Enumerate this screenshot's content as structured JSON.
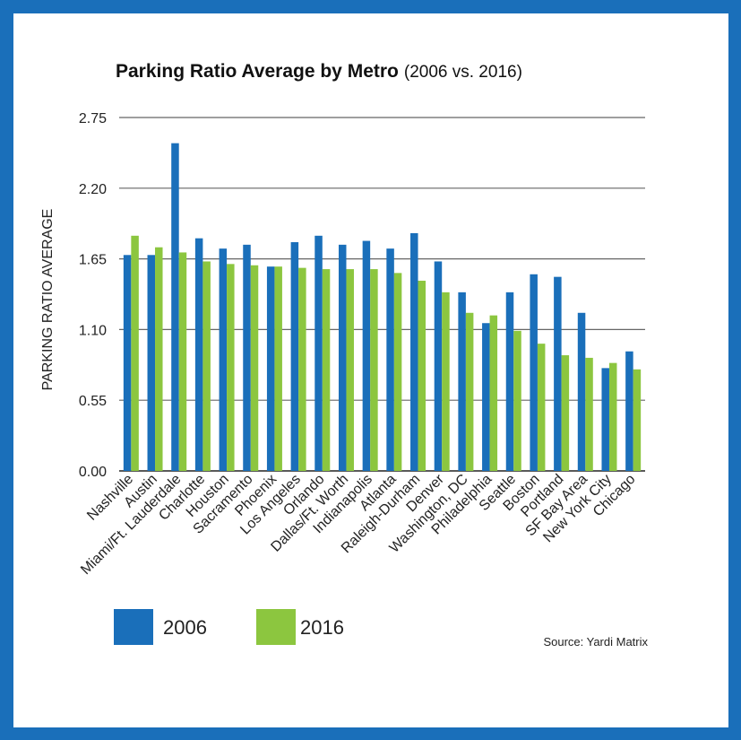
{
  "chart_data": {
    "type": "bar",
    "title": "Parking Ratio Average by Metro",
    "subtitle": "(2006 vs. 2016)",
    "xlabel": "",
    "ylabel": "PARKING RATIO AVERAGE",
    "ylim": [
      0,
      2.75
    ],
    "yticks": [
      "0.00",
      "0.55",
      "1.10",
      "1.65",
      "2.20",
      "2.75"
    ],
    "grid": true,
    "legend": "bottom-left",
    "source": "Source: Yardi Matrix",
    "categories": [
      "Nashville",
      "Austin",
      "Miami/Ft. Lauderdale",
      "Charlotte",
      "Houston",
      "Sacramento",
      "Phoenix",
      "Los Angeles",
      "Orlando",
      "Dallas/Ft. Worth",
      "Indianapolis",
      "Atlanta",
      "Raleigh-Durham",
      "Denver",
      "Washington, DC",
      "Philadelphia",
      "Seattle",
      "Boston",
      "Portland",
      "SF Bay Area",
      "New York City",
      "Chicago"
    ],
    "series": [
      {
        "name": "2006",
        "color": "#1a6fba",
        "values": [
          1.68,
          1.68,
          2.55,
          1.81,
          1.73,
          1.76,
          1.59,
          1.78,
          1.83,
          1.76,
          1.79,
          1.73,
          1.85,
          1.63,
          1.39,
          1.15,
          1.39,
          1.53,
          1.51,
          1.23,
          0.8,
          0.93
        ]
      },
      {
        "name": "2016",
        "color": "#8cc63f",
        "values": [
          1.83,
          1.74,
          1.7,
          1.63,
          1.61,
          1.6,
          1.59,
          1.58,
          1.57,
          1.57,
          1.57,
          1.54,
          1.48,
          1.39,
          1.23,
          1.21,
          1.09,
          0.99,
          0.9,
          0.88,
          0.84,
          0.79
        ]
      }
    ]
  }
}
